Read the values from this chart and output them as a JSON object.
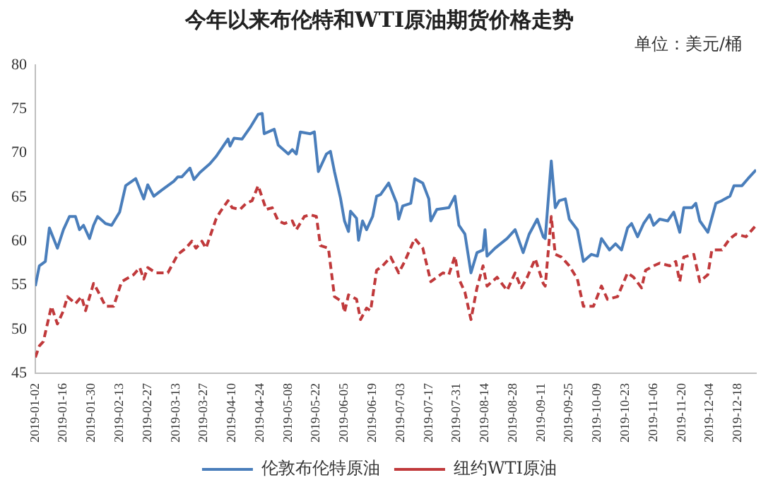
{
  "chart_data": {
    "type": "line",
    "title": "今年以来布伦特和WTI原油期货价格走势",
    "annotations": [
      "单位：美元/桶"
    ],
    "xlim": [
      "2019-01-02",
      "2019-12-27"
    ],
    "xticks": [
      "2019-01-02",
      "2019-01-16",
      "2019-01-30",
      "2019-02-13",
      "2019-02-27",
      "2019-03-13",
      "2019-03-27",
      "2019-04-10",
      "2019-04-24",
      "2019-05-08",
      "2019-05-22",
      "2019-06-05",
      "2019-06-19",
      "2019-07-03",
      "2019-07-17",
      "2019-07-31",
      "2019-08-14",
      "2019-08-28",
      "2019-09-11",
      "2019-09-25",
      "2019-10-09",
      "2019-10-23",
      "2019-11-06",
      "2019-11-20",
      "2019-12-04",
      "2019-12-18"
    ],
    "ylim": [
      45,
      80
    ],
    "yticks": [
      45,
      50,
      55,
      60,
      65,
      70,
      75,
      80
    ],
    "grid": false,
    "legend": "bottom",
    "marker": "none",
    "series": [
      {
        "name": "伦敦布伦特原油",
        "color": "#4a7ebb",
        "line_style": "solid",
        "x": [
          "2019-01-02",
          "2019-01-04",
          "2019-01-07",
          "2019-01-09",
          "2019-01-13",
          "2019-01-16",
          "2019-01-19",
          "2019-01-22",
          "2019-01-24",
          "2019-01-26",
          "2019-01-29",
          "2019-01-31",
          "2019-02-02",
          "2019-02-06",
          "2019-02-09",
          "2019-02-13",
          "2019-02-16",
          "2019-02-21",
          "2019-02-25",
          "2019-02-27",
          "2019-03-02",
          "2019-03-06",
          "2019-03-12",
          "2019-03-14",
          "2019-03-16",
          "2019-03-20",
          "2019-03-22",
          "2019-03-25",
          "2019-03-30",
          "2019-04-02",
          "2019-04-08",
          "2019-04-09",
          "2019-04-11",
          "2019-04-15",
          "2019-04-19",
          "2019-04-23",
          "2019-04-25",
          "2019-04-26",
          "2019-05-01",
          "2019-05-03",
          "2019-05-08",
          "2019-05-10",
          "2019-05-12",
          "2019-05-14",
          "2019-05-19",
          "2019-05-21",
          "2019-05-23",
          "2019-05-27",
          "2019-05-29",
          "2019-05-31",
          "2019-06-03",
          "2019-06-05",
          "2019-06-07",
          "2019-06-08",
          "2019-06-11",
          "2019-06-12",
          "2019-06-14",
          "2019-06-16",
          "2019-06-19",
          "2019-06-21",
          "2019-06-23",
          "2019-06-27",
          "2019-07-01",
          "2019-07-02",
          "2019-07-04",
          "2019-07-08",
          "2019-07-10",
          "2019-07-14",
          "2019-07-17",
          "2019-07-18",
          "2019-07-21",
          "2019-07-27",
          "2019-07-30",
          "2019-08-01",
          "2019-08-04",
          "2019-08-07",
          "2019-08-10",
          "2019-08-13",
          "2019-08-14",
          "2019-08-15",
          "2019-08-19",
          "2019-08-25",
          "2019-08-29",
          "2019-09-02",
          "2019-09-05",
          "2019-09-09",
          "2019-09-12",
          "2019-09-13",
          "2019-09-16",
          "2019-09-18",
          "2019-09-20",
          "2019-09-23",
          "2019-09-25",
          "2019-09-29",
          "2019-10-02",
          "2019-10-06",
          "2019-10-09",
          "2019-10-11",
          "2019-10-15",
          "2019-10-18",
          "2019-10-21",
          "2019-10-24",
          "2019-10-26",
          "2019-10-29",
          "2019-11-01",
          "2019-11-04",
          "2019-11-06",
          "2019-11-09",
          "2019-11-13",
          "2019-11-16",
          "2019-11-19",
          "2019-11-21",
          "2019-11-25",
          "2019-11-27",
          "2019-11-29",
          "2019-12-03",
          "2019-12-07",
          "2019-12-10",
          "2019-12-14",
          "2019-12-16",
          "2019-12-20",
          "2019-12-23",
          "2019-12-27"
        ],
        "values": [
          54.9,
          57.2,
          57.7,
          61.5,
          59.2,
          61.3,
          62.8,
          62.8,
          61.3,
          61.8,
          60.3,
          61.8,
          62.8,
          62.0,
          61.8,
          63.3,
          66.3,
          67.1,
          64.8,
          66.4,
          65.1,
          65.8,
          66.8,
          67.3,
          67.3,
          68.3,
          67.0,
          67.8,
          68.8,
          69.6,
          71.6,
          70.8,
          71.7,
          71.6,
          72.9,
          74.4,
          74.5,
          72.2,
          72.7,
          70.9,
          69.9,
          70.4,
          69.9,
          72.4,
          72.2,
          72.4,
          67.9,
          69.9,
          70.2,
          67.9,
          64.9,
          62.3,
          61.1,
          63.4,
          62.6,
          60.1,
          62.3,
          61.3,
          62.8,
          65.1,
          65.3,
          66.6,
          64.3,
          62.5,
          64.0,
          64.3,
          67.1,
          66.6,
          64.8,
          62.3,
          63.6,
          63.8,
          65.1,
          61.8,
          60.8,
          56.4,
          58.7,
          59.0,
          61.3,
          58.3,
          59.2,
          60.3,
          61.3,
          58.7,
          60.8,
          62.5,
          60.5,
          60.3,
          69.1,
          63.8,
          64.6,
          64.8,
          62.5,
          61.3,
          57.7,
          58.5,
          58.3,
          60.3,
          59.0,
          59.7,
          59.0,
          61.5,
          62.0,
          60.5,
          62.0,
          63.0,
          61.8,
          62.5,
          62.3,
          63.3,
          61.0,
          63.8,
          63.8,
          64.3,
          62.3,
          61.0,
          64.3,
          64.6,
          65.1,
          66.3,
          66.3,
          67.1,
          68.1
        ]
      },
      {
        "name": "纽约WTI原油",
        "color": "#c0393b",
        "line_style": "dashed",
        "x": [
          "2019-01-02",
          "2019-01-04",
          "2019-01-06",
          "2019-01-10",
          "2019-01-13",
          "2019-01-16",
          "2019-01-18",
          "2019-01-22",
          "2019-01-25",
          "2019-01-27",
          "2019-01-31",
          "2019-02-02",
          "2019-02-06",
          "2019-02-10",
          "2019-02-14",
          "2019-02-20",
          "2019-02-23",
          "2019-02-25",
          "2019-02-27",
          "2019-03-03",
          "2019-03-09",
          "2019-03-14",
          "2019-03-18",
          "2019-03-21",
          "2019-03-23",
          "2019-03-26",
          "2019-03-28",
          "2019-04-02",
          "2019-04-04",
          "2019-04-08",
          "2019-04-10",
          "2019-04-14",
          "2019-04-17",
          "2019-04-20",
          "2019-04-23",
          "2019-04-27",
          "2019-04-30",
          "2019-05-03",
          "2019-05-06",
          "2019-05-10",
          "2019-05-12",
          "2019-05-16",
          "2019-05-19",
          "2019-05-22",
          "2019-05-24",
          "2019-05-28",
          "2019-05-31",
          "2019-06-04",
          "2019-06-05",
          "2019-06-07",
          "2019-06-11",
          "2019-06-13",
          "2019-06-16",
          "2019-06-18",
          "2019-06-21",
          "2019-06-24",
          "2019-06-28",
          "2019-07-02",
          "2019-07-05",
          "2019-07-10",
          "2019-07-14",
          "2019-07-18",
          "2019-07-24",
          "2019-07-27",
          "2019-07-30",
          "2019-08-01",
          "2019-08-04",
          "2019-08-07",
          "2019-08-10",
          "2019-08-13",
          "2019-08-15",
          "2019-08-20",
          "2019-08-25",
          "2019-08-29",
          "2019-09-01",
          "2019-09-04",
          "2019-09-08",
          "2019-09-12",
          "2019-09-13",
          "2019-09-16",
          "2019-09-18",
          "2019-09-21",
          "2019-09-25",
          "2019-09-29",
          "2019-10-02",
          "2019-10-07",
          "2019-10-11",
          "2019-10-14",
          "2019-10-19",
          "2019-10-24",
          "2019-10-27",
          "2019-10-31",
          "2019-11-02",
          "2019-11-06",
          "2019-11-09",
          "2019-11-14",
          "2019-11-17",
          "2019-11-19",
          "2019-11-21",
          "2019-11-26",
          "2019-11-29",
          "2019-12-03",
          "2019-12-05",
          "2019-12-10",
          "2019-12-14",
          "2019-12-17",
          "2019-12-22",
          "2019-12-27"
        ],
        "values": [
          46.8,
          48.1,
          48.6,
          52.6,
          50.6,
          52.1,
          53.7,
          52.9,
          53.7,
          52.1,
          55.2,
          54.4,
          52.6,
          52.6,
          55.4,
          56.2,
          57.0,
          55.7,
          57.0,
          56.4,
          56.4,
          58.5,
          59.2,
          60.0,
          59.2,
          60.0,
          59.2,
          62.5,
          63.3,
          64.6,
          63.8,
          63.6,
          64.3,
          64.6,
          66.3,
          63.6,
          63.8,
          62.3,
          62.0,
          62.3,
          61.3,
          62.8,
          63.0,
          62.8,
          59.5,
          59.2,
          53.7,
          53.1,
          51.9,
          53.9,
          53.4,
          51.1,
          52.4,
          52.1,
          56.7,
          57.2,
          58.2,
          56.4,
          57.7,
          60.3,
          59.2,
          55.4,
          56.4,
          56.2,
          58.3,
          55.7,
          54.2,
          51.1,
          54.7,
          57.2,
          54.9,
          55.9,
          54.4,
          56.4,
          54.7,
          55.9,
          58.0,
          55.2,
          54.9,
          62.8,
          58.5,
          58.2,
          57.2,
          55.7,
          52.6,
          52.6,
          54.9,
          53.4,
          53.7,
          56.4,
          55.9,
          54.7,
          56.7,
          57.2,
          57.5,
          57.2,
          57.7,
          55.4,
          58.2,
          58.5,
          55.4,
          56.2,
          59.0,
          59.0,
          60.3,
          60.8,
          60.5,
          61.8
        ]
      }
    ]
  }
}
